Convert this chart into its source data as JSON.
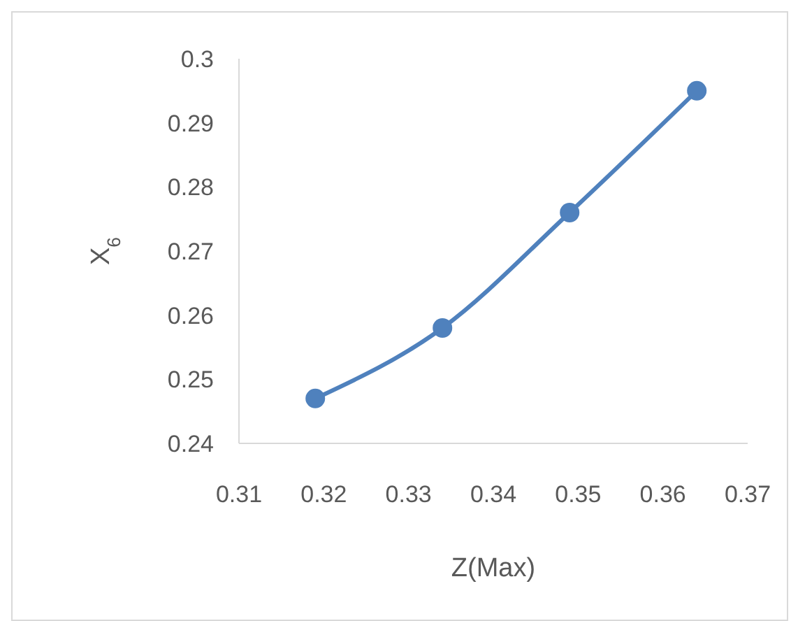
{
  "chart_data": {
    "type": "line",
    "xlabel": "Z(Max)",
    "ylabel": "X$_{6}$",
    "x": [
      0.319,
      0.334,
      0.349,
      0.364
    ],
    "series": [
      {
        "color": "#4f81bd",
        "values": [
          0.247,
          0.258,
          0.276,
          0.295
        ]
      }
    ],
    "xlim": [
      0.31,
      0.37
    ],
    "xticks": [
      0.31,
      0.32,
      0.33,
      0.34,
      0.35,
      0.36,
      0.37
    ],
    "ylim": [
      0.24,
      0.3
    ],
    "yticks": [
      0.24,
      0.25,
      0.26,
      0.27,
      0.28,
      0.29,
      0.3
    ],
    "marker": "circle",
    "line_style": "solid",
    "grid": false
  }
}
